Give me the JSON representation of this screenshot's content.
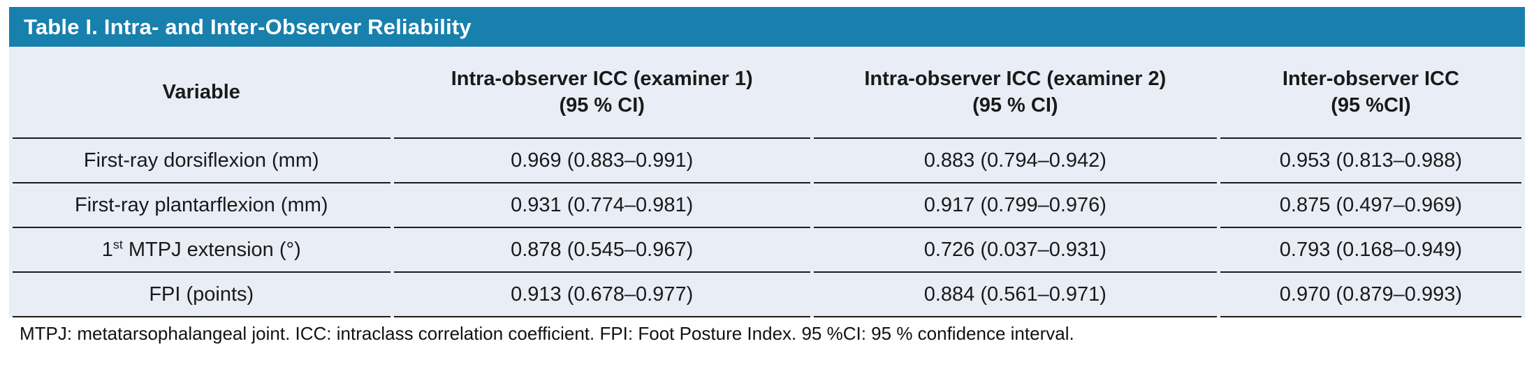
{
  "title": "Table I. Intra- and Inter-Observer Reliability",
  "colors": {
    "header_bar": "#1880ad",
    "table_bg": "#e9edf6",
    "rule": "#1c1c1c"
  },
  "table": {
    "columns": [
      {
        "label": "Variable",
        "sub": ""
      },
      {
        "label": "Intra-observer ICC (examiner 1)",
        "sub": "(95 % CI)"
      },
      {
        "label": "Intra-observer ICC (examiner 2)",
        "sub": "(95 % CI)"
      },
      {
        "label": "Inter-observer ICC",
        "sub": "(95 %CI)"
      }
    ],
    "col_widths": [
      "25.2%",
      "27.8%",
      "26.9%",
      "20.1%"
    ],
    "rows": [
      {
        "variable": {
          "pre": "First-ray dorsiflexion (mm)",
          "sup": "",
          "post": ""
        },
        "values": [
          "0.969 (0.883–0.991)",
          "0.883 (0.794–0.942)",
          "0.953 (0.813–0.988)"
        ]
      },
      {
        "variable": {
          "pre": "First-ray plantarflexion (mm)",
          "sup": "",
          "post": ""
        },
        "values": [
          "0.931 (0.774–0.981)",
          "0.917 (0.799–0.976)",
          "0.875 (0.497–0.969)"
        ]
      },
      {
        "variable": {
          "pre": "1",
          "sup": "st",
          "post": " MTPJ extension (°)"
        },
        "values": [
          "0.878 (0.545–0.967)",
          "0.726 (0.037–0.931)",
          "0.793 (0.168–0.949)"
        ]
      },
      {
        "variable": {
          "pre": "FPI (points)",
          "sup": "",
          "post": ""
        },
        "values": [
          "0.913 (0.678–0.977)",
          "0.884 (0.561–0.971)",
          "0.970 (0.879–0.993)"
        ]
      }
    ]
  },
  "footnote": "MTPJ: metatarsophalangeal joint. ICC: intraclass correlation coefficient. FPI: Foot Posture Index. 95 %CI: 95 % confidence interval."
}
